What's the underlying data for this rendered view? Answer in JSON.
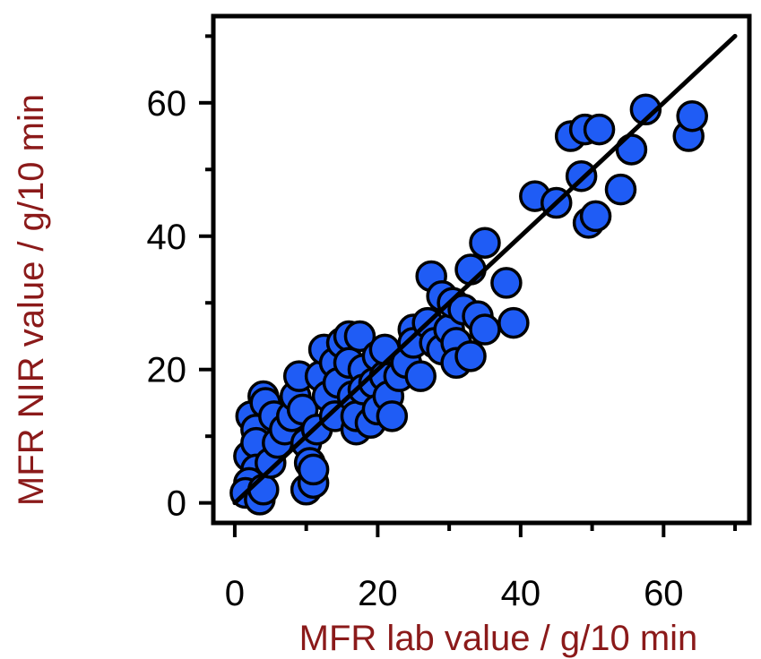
{
  "colors": {
    "point_fill": "#1f5cf5",
    "point_stroke": "#000000",
    "axis_label": "#8b1a1a",
    "fit_line": "#000000"
  },
  "chart_data": {
    "type": "scatter",
    "title": "",
    "xlabel": "MFR lab value / g/10 min",
    "ylabel": "MFR NIR value / g/10 min",
    "xlim": [
      -3,
      72
    ],
    "ylim": [
      -3,
      73
    ],
    "x_ticks": [
      0,
      20,
      40,
      60
    ],
    "y_ticks": [
      0,
      20,
      40,
      60
    ],
    "grid": false,
    "legend": "none",
    "fit_line": {
      "x": [
        0,
        70
      ],
      "y": [
        0,
        70
      ]
    },
    "points": [
      [
        2,
        7
      ],
      [
        2.3,
        13
      ],
      [
        3,
        11
      ],
      [
        4,
        16
      ],
      [
        4.3,
        15
      ],
      [
        3,
        9
      ],
      [
        3,
        5
      ],
      [
        2,
        3
      ],
      [
        1.5,
        1.5
      ],
      [
        3.5,
        0.5
      ],
      [
        4,
        2
      ],
      [
        5,
        6
      ],
      [
        5.5,
        13
      ],
      [
        6,
        9
      ],
      [
        7,
        11
      ],
      [
        8,
        13
      ],
      [
        8.5,
        16
      ],
      [
        9,
        19
      ],
      [
        9.5,
        14
      ],
      [
        10,
        9
      ],
      [
        10.5,
        6
      ],
      [
        10,
        2
      ],
      [
        11,
        3
      ],
      [
        11,
        5
      ],
      [
        11.5,
        11
      ],
      [
        12,
        19
      ],
      [
        12.5,
        23
      ],
      [
        13,
        16
      ],
      [
        14,
        13
      ],
      [
        14,
        21
      ],
      [
        14.5,
        18
      ],
      [
        15,
        24
      ],
      [
        16,
        25
      ],
      [
        16,
        21
      ],
      [
        16.5,
        16
      ],
      [
        17,
        11
      ],
      [
        17,
        13
      ],
      [
        17.5,
        25
      ],
      [
        18,
        20
      ],
      [
        18,
        17
      ],
      [
        19,
        12
      ],
      [
        19.5,
        18
      ],
      [
        20,
        14
      ],
      [
        20,
        22
      ],
      [
        21,
        19
      ],
      [
        21,
        23
      ],
      [
        21.5,
        16
      ],
      [
        22,
        13
      ],
      [
        23,
        19
      ],
      [
        24,
        21
      ],
      [
        25,
        26
      ],
      [
        25,
        24
      ],
      [
        26,
        19
      ],
      [
        27,
        27
      ],
      [
        27.5,
        34
      ],
      [
        28,
        24
      ],
      [
        29,
        23
      ],
      [
        29,
        31
      ],
      [
        30,
        26
      ],
      [
        30.5,
        30
      ],
      [
        31,
        24
      ],
      [
        31,
        21
      ],
      [
        32,
        29
      ],
      [
        33,
        35
      ],
      [
        33,
        22
      ],
      [
        34,
        28
      ],
      [
        35,
        26
      ],
      [
        35,
        39
      ],
      [
        38,
        33
      ],
      [
        39,
        27
      ],
      [
        42,
        46
      ],
      [
        45,
        45
      ],
      [
        47,
        55
      ],
      [
        48.5,
        49
      ],
      [
        49,
        56
      ],
      [
        49.5,
        42
      ],
      [
        50.5,
        43
      ],
      [
        51,
        56
      ],
      [
        54,
        47
      ],
      [
        55.5,
        53
      ],
      [
        57.5,
        59
      ],
      [
        63.5,
        55
      ],
      [
        64,
        58
      ]
    ]
  }
}
